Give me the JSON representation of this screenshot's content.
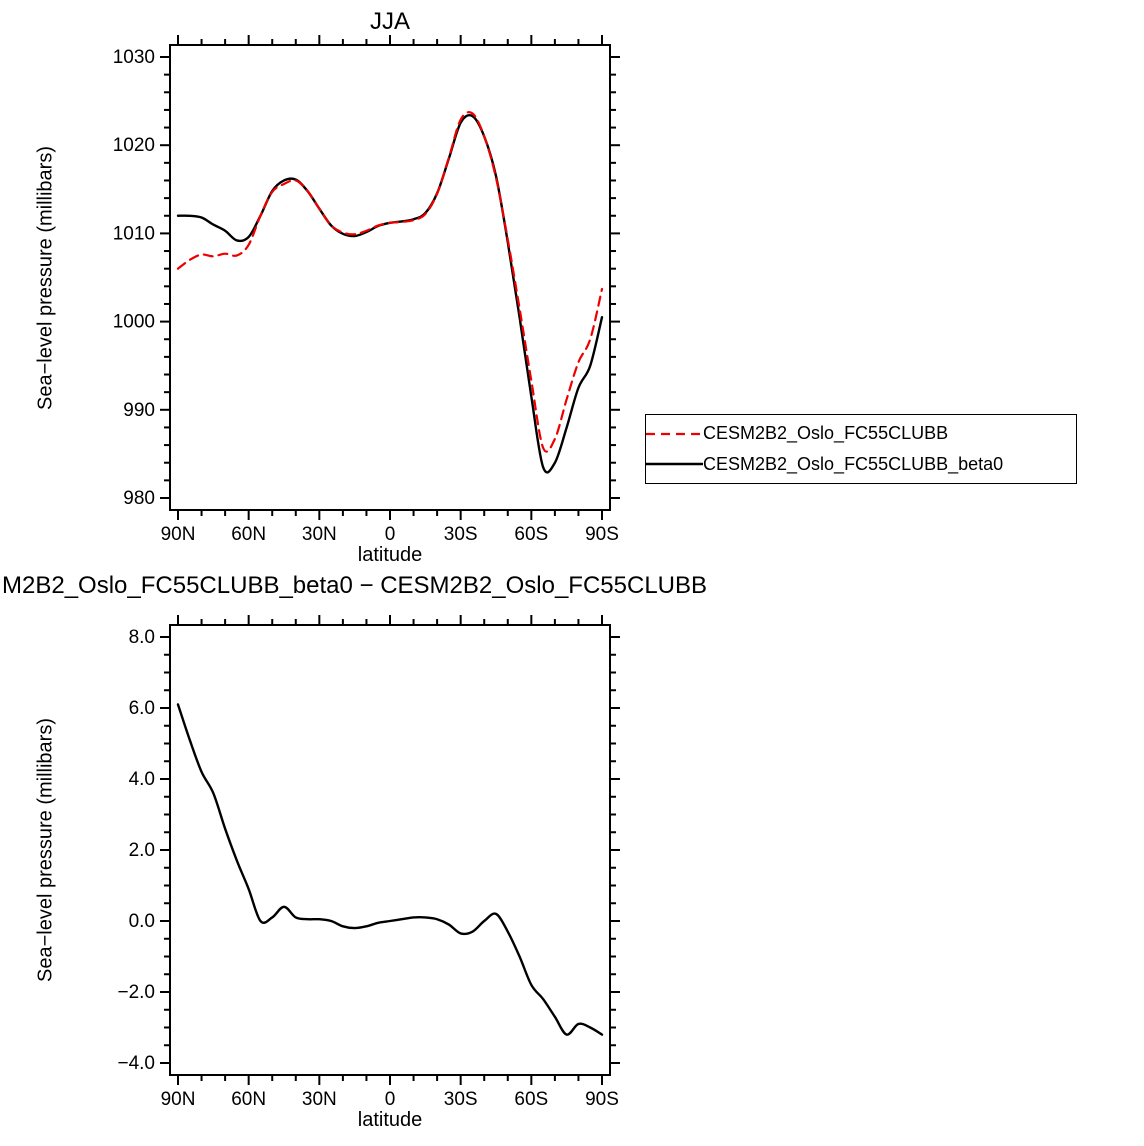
{
  "colors": {
    "red_line": "#ee0000",
    "black_line": "#000000",
    "axis": "#000000",
    "background": "#ffffff"
  },
  "chart_data": [
    {
      "type": "line",
      "title": "JJA",
      "xlabel": "latitude",
      "ylabel": "Sea−level pressure (millibars)",
      "xlim": [
        90,
        -90
      ],
      "ylim": [
        980,
        1030
      ],
      "grid": false,
      "legend_position": "outside-right",
      "x_major_ticks": [
        90,
        60,
        30,
        0,
        -30,
        -60,
        -90
      ],
      "x_tick_labels": [
        "90N",
        "60N",
        "30N",
        "0",
        "30S",
        "60S",
        "90S"
      ],
      "x_minor_step": 10,
      "y_major_ticks": [
        980,
        990,
        1000,
        1010,
        1020,
        1030
      ],
      "y_tick_labels": [
        "980",
        "990",
        "1000",
        "1010",
        "1020",
        "1030"
      ],
      "y_minor_step": 2,
      "x": [
        90,
        85,
        80,
        75,
        70,
        65,
        60,
        55,
        50,
        45,
        40,
        35,
        30,
        25,
        20,
        15,
        10,
        5,
        0,
        -5,
        -10,
        -15,
        -20,
        -25,
        -30,
        -35,
        -40,
        -45,
        -50,
        -55,
        -60,
        -65,
        -70,
        -75,
        -80,
        -85,
        -90
      ],
      "series": [
        {
          "name": "CESM2B2_Oslo_FC55CLUBB",
          "color": "#ee0000",
          "style": "dashed",
          "values": [
            1006.0,
            1007.0,
            1007.6,
            1007.4,
            1007.7,
            1007.5,
            1008.7,
            1012.0,
            1014.7,
            1015.6,
            1016.0,
            1014.8,
            1012.8,
            1010.9,
            1010.1,
            1009.9,
            1010.3,
            1010.9,
            1011.2,
            1011.3,
            1011.5,
            1012.2,
            1014.5,
            1018.6,
            1022.9,
            1023.6,
            1021.0,
            1016.3,
            1009.3,
            1001.5,
            993.3,
            985.7,
            986.7,
            991.2,
            995.4,
            998.0,
            1003.7
          ]
        },
        {
          "name": "CESM2B2_Oslo_FC55CLUBB_beta0",
          "color": "#000000",
          "style": "solid",
          "values": [
            1012.0,
            1012.0,
            1011.8,
            1011.0,
            1010.3,
            1009.2,
            1009.6,
            1012.0,
            1014.8,
            1016.0,
            1016.1,
            1014.8,
            1012.8,
            1010.9,
            1009.95,
            1009.7,
            1010.15,
            1010.85,
            1011.2,
            1011.35,
            1011.6,
            1012.3,
            1014.55,
            1018.5,
            1022.55,
            1023.3,
            1021.0,
            1016.5,
            1009.0,
            1000.5,
            991.5,
            983.5,
            984.0,
            988.0,
            992.5,
            995.0,
            1000.5
          ]
        }
      ]
    },
    {
      "type": "line",
      "title": "M2B2_Oslo_FC55CLUBB_beta0 − CESM2B2_Oslo_FC55CLUBB",
      "xlabel": "latitude",
      "ylabel": "Sea−level pressure (millibars)",
      "xlim": [
        90,
        -90
      ],
      "ylim": [
        -4,
        8
      ],
      "grid": false,
      "x_major_ticks": [
        90,
        60,
        30,
        0,
        -30,
        -60,
        -90
      ],
      "x_tick_labels": [
        "90N",
        "60N",
        "30N",
        "0",
        "30S",
        "60S",
        "90S"
      ],
      "x_minor_step": 10,
      "y_major_ticks": [
        8,
        6,
        4,
        2,
        0,
        -2,
        -4
      ],
      "y_tick_labels": [
        "8.0",
        "6.0",
        "4.0",
        "2.0",
        "0.0",
        "−2.0",
        "−4.0"
      ],
      "y_minor_step": 0.5,
      "x": [
        90,
        85,
        80,
        75,
        70,
        65,
        60,
        55,
        50,
        45,
        40,
        35,
        30,
        25,
        20,
        15,
        10,
        5,
        0,
        -5,
        -10,
        -15,
        -20,
        -25,
        -30,
        -35,
        -40,
        -45,
        -50,
        -55,
        -60,
        -65,
        -70,
        -75,
        -80,
        -85,
        -90
      ],
      "series": [
        {
          "color": "#000000",
          "style": "solid",
          "values": [
            6.1,
            5.1,
            4.2,
            3.6,
            2.6,
            1.7,
            0.9,
            0.0,
            0.1,
            0.4,
            0.1,
            0.05,
            0.05,
            0.0,
            -0.15,
            -0.2,
            -0.15,
            -0.05,
            0.0,
            0.05,
            0.1,
            0.1,
            0.05,
            -0.1,
            -0.35,
            -0.3,
            0.0,
            0.2,
            -0.3,
            -1.0,
            -1.8,
            -2.2,
            -2.7,
            -3.2,
            -2.9,
            -3.0,
            -3.2
          ]
        }
      ]
    }
  ]
}
